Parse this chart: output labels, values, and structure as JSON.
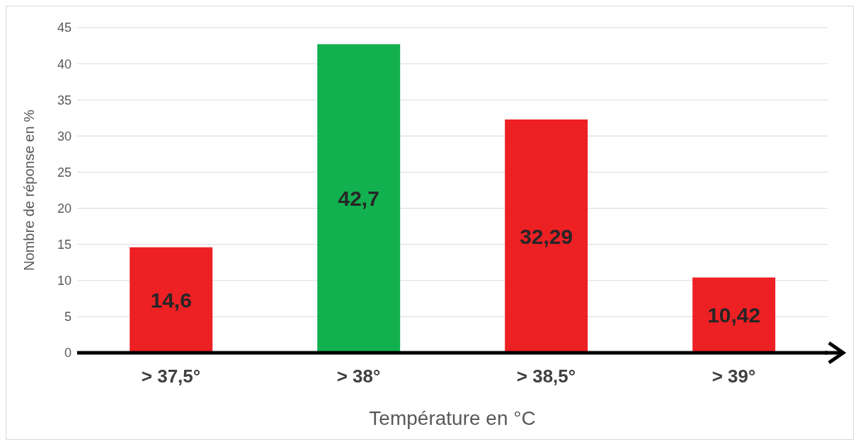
{
  "chart_data": {
    "type": "bar",
    "xlabel": "Température en °C",
    "ylabel": "Nombre de réponse en %",
    "categories": [
      "> 37,5°",
      "> 38°",
      "> 38,5°",
      "> 39°"
    ],
    "values": [
      14.6,
      42.7,
      32.29,
      10.42
    ],
    "colors": [
      "#ed2024",
      "#13b04f",
      "#ed2024",
      "#ed2024"
    ],
    "value_labels": [
      "14,6",
      "42,7",
      "32,29",
      "10,42"
    ],
    "ylim": [
      0,
      45
    ],
    "yticks": [
      0,
      5,
      10,
      15,
      20,
      25,
      30,
      35,
      40,
      45
    ],
    "grid": "y",
    "legend": false
  }
}
